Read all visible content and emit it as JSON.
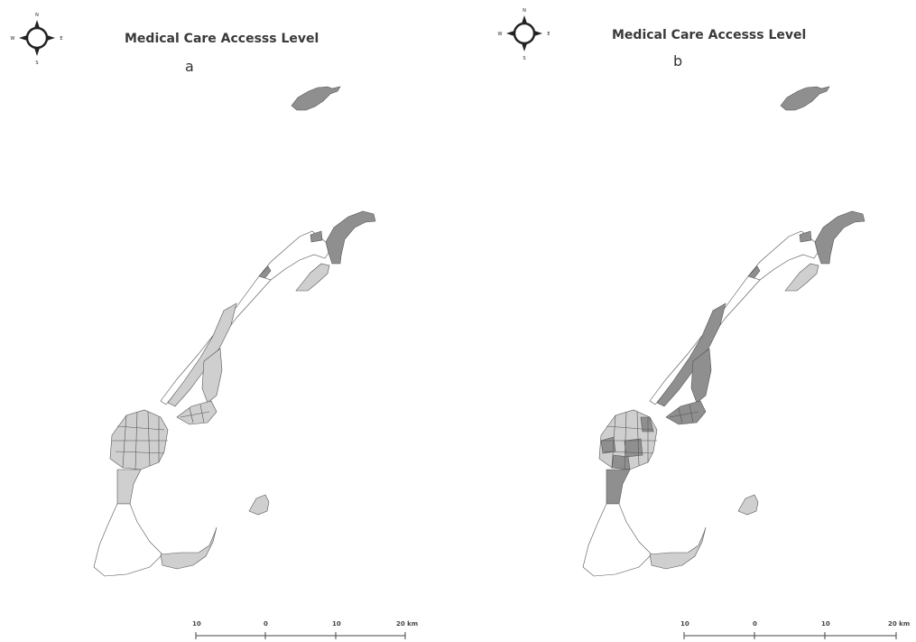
{
  "figure": {
    "panels": [
      {
        "id": "a",
        "title": "Medical Care Accesss Level",
        "label": "a",
        "compass": {
          "north": "N",
          "south": "S",
          "east": "E",
          "west": "W"
        },
        "scale_bar": {
          "ticks": [
            "10",
            "0",
            "10",
            "20 km"
          ]
        }
      },
      {
        "id": "b",
        "title": "Medical Care Accesss Level",
        "label": "b",
        "compass": {
          "north": "N",
          "south": "S",
          "east": "E",
          "west": "W"
        },
        "scale_bar": {
          "ticks": [
            "10",
            "0",
            "10",
            "20 km"
          ]
        }
      }
    ],
    "colors": {
      "dark": "#8f8f8f",
      "light": "#cfcfcf",
      "none": "#ffffff",
      "outline": "#555555"
    }
  }
}
